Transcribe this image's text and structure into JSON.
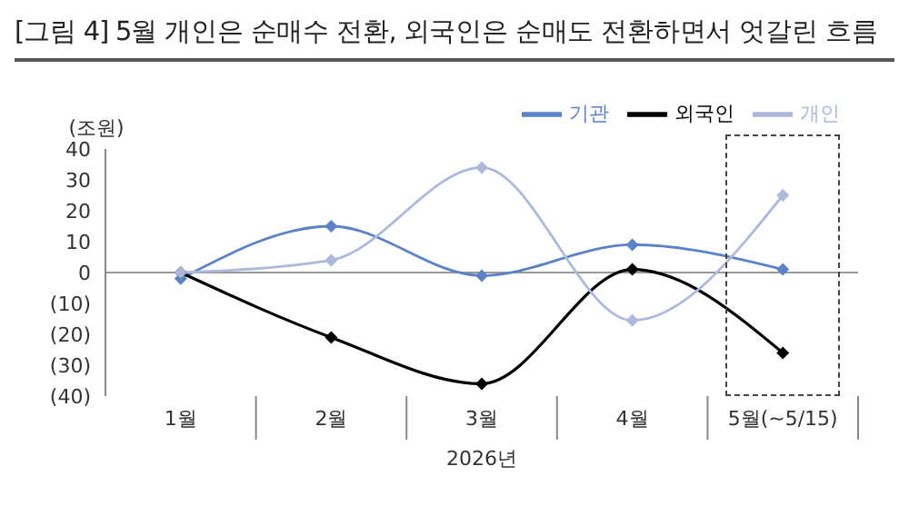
{
  "chart_data": {
    "type": "line",
    "title": "[그림 4] 5월 개인은 순매수 전환, 외국인은 순매도 전환하면서 엇갈린 흐름",
    "ylabel": "(조원)",
    "xlabel": "2026년",
    "categories": [
      "1월",
      "2월",
      "3월",
      "4월",
      "5월(~5/15)"
    ],
    "series": [
      {
        "name": "기관",
        "color": "#5b82c7",
        "values": [
          -2,
          15,
          -1,
          9,
          1
        ]
      },
      {
        "name": "외국인",
        "color": "#000000",
        "values": [
          0,
          -21,
          -36,
          1,
          -26
        ]
      },
      {
        "name": "개인",
        "color": "#adb9dc",
        "values": [
          0,
          4,
          34,
          -15.5,
          25
        ]
      }
    ],
    "ylim": [
      -40,
      40
    ],
    "yticks": [
      {
        "value": -40,
        "label": "(40)"
      },
      {
        "value": -30,
        "label": "(30)"
      },
      {
        "value": -20,
        "label": "(20)"
      },
      {
        "value": -10,
        "label": "(10)"
      },
      0,
      10,
      20,
      30,
      40
    ],
    "ref_lines": [
      {
        "axis": "y",
        "value": 0,
        "color": "#999999"
      }
    ],
    "legend": "top right",
    "marker": "diamond",
    "line_style": "solid",
    "grid": false
  }
}
